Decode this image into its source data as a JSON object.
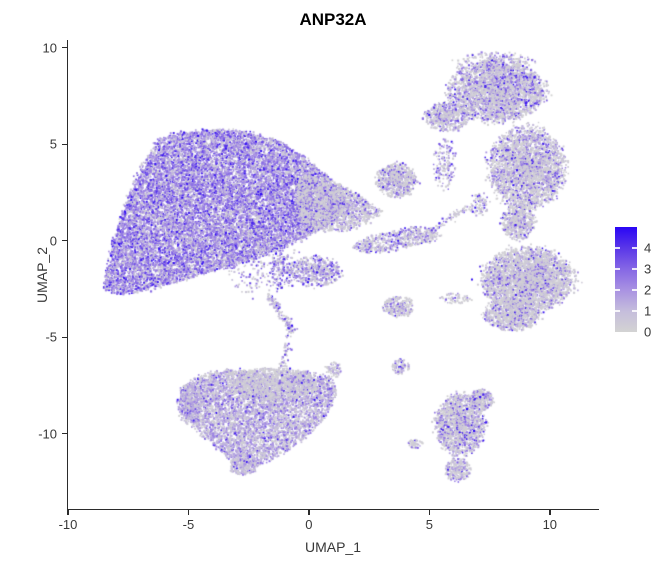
{
  "title": "ANP32A",
  "chart_data": {
    "type": "scatter",
    "subtype": "umap-feature-plot",
    "title": "ANP32A",
    "xlabel": "UMAP_1",
    "ylabel": "UMAP_2",
    "xlim": [
      -10,
      12.0
    ],
    "ylim": [
      -13.9,
      10.4
    ],
    "xticks": [
      -10,
      -5,
      0,
      5,
      10
    ],
    "yticks": [
      -10,
      -5,
      0,
      5,
      10
    ],
    "grid": false,
    "legend_position": "right",
    "colorbar": {
      "ticks": [
        0,
        1,
        2,
        3,
        4
      ],
      "min": 0,
      "max": 5,
      "stops": [
        {
          "t": 0.0,
          "color": "#d3d3d3"
        },
        {
          "t": 0.2,
          "color": "#c5bddc"
        },
        {
          "t": 0.4,
          "color": "#a992e2"
        },
        {
          "t": 0.6,
          "color": "#8567e5"
        },
        {
          "t": 0.8,
          "color": "#5a37e8"
        },
        {
          "t": 1.0,
          "color": "#2a06f5"
        }
      ]
    },
    "clusters": [
      {
        "name": "main-left-triangle",
        "shape": "poly",
        "n": 15000,
        "expr_weights": [
          0.2,
          0.18,
          0.44,
          0.18
        ],
        "pts": [
          [
            -8.55,
            -2.49
          ],
          [
            -8.17,
            -0.21
          ],
          [
            -7.51,
            2.33
          ],
          [
            -6.89,
            4.04
          ],
          [
            -6.27,
            5.18
          ],
          [
            -5.44,
            5.6
          ],
          [
            -3.9,
            5.75
          ],
          [
            -2.37,
            5.6
          ],
          [
            -1.12,
            5.08
          ],
          [
            -0.17,
            4.3
          ],
          [
            0.75,
            3.37
          ],
          [
            1.54,
            2.12
          ],
          [
            1.29,
            1.35
          ],
          [
            0.25,
            0.41
          ],
          [
            -1.0,
            -0.36
          ],
          [
            -2.24,
            -0.93
          ],
          [
            -3.49,
            -1.4
          ],
          [
            -4.81,
            -1.87
          ],
          [
            -6.06,
            -2.33
          ],
          [
            -7.22,
            -2.69
          ],
          [
            -8.05,
            -2.75
          ]
        ]
      },
      {
        "name": "main-right-gray-wing",
        "shape": "poly",
        "n": 1600,
        "expr_weights": [
          0.68,
          0.12,
          0.14,
          0.06
        ],
        "pts": [
          [
            -0.37,
            3.52
          ],
          [
            0.87,
            3.16
          ],
          [
            2.12,
            2.33
          ],
          [
            3.03,
            1.5
          ],
          [
            2.61,
            0.98
          ],
          [
            1.49,
            0.47
          ],
          [
            0.37,
            0.47
          ],
          [
            -0.37,
            1.09
          ],
          [
            -0.58,
            2.12
          ]
        ]
      },
      {
        "name": "below-main-sparse",
        "shape": "ellipse",
        "n": 220,
        "expr_weights": [
          0.35,
          0.2,
          0.3,
          0.15
        ],
        "cx": -1.95,
        "cy": -1.4,
        "rx": 1.58,
        "ry": 1.45
      },
      {
        "name": "top-right-mushroom-head",
        "shape": "ellipse",
        "n": 2800,
        "expr_weights": [
          0.6,
          0.14,
          0.17,
          0.09
        ],
        "cx": 7.8,
        "cy": 7.72,
        "rx": 1.99,
        "ry": 1.55
      },
      {
        "name": "top-right-left-wing",
        "shape": "ellipse",
        "n": 550,
        "expr_weights": [
          0.6,
          0.14,
          0.17,
          0.09
        ],
        "cx": 5.73,
        "cy": 6.42,
        "rx": 0.91,
        "ry": 0.73
      },
      {
        "name": "top-right-halo",
        "shape": "ellipse",
        "n": 260,
        "expr_weights": [
          0.6,
          0.14,
          0.17,
          0.09
        ],
        "cx": 7.72,
        "cy": 9.27,
        "rx": 1.66,
        "ry": 0.52
      },
      {
        "name": "right-body",
        "shape": "ellipse",
        "n": 2800,
        "expr_weights": [
          0.66,
          0.12,
          0.14,
          0.08
        ],
        "cx": 9.05,
        "cy": 3.78,
        "rx": 1.58,
        "ry": 2.12
      },
      {
        "name": "right-neck",
        "shape": "ellipse",
        "n": 520,
        "expr_weights": [
          0.68,
          0.12,
          0.13,
          0.07
        ],
        "cx": 8.71,
        "cy": 0.98,
        "rx": 0.71,
        "ry": 0.93
      },
      {
        "name": "right-boot",
        "shape": "ellipse",
        "n": 3300,
        "expr_weights": [
          0.7,
          0.12,
          0.12,
          0.06
        ],
        "cx": 9.09,
        "cy": -2.02,
        "rx": 1.87,
        "ry": 1.66
      },
      {
        "name": "right-boot-toe",
        "shape": "ellipse",
        "n": 900,
        "expr_weights": [
          0.7,
          0.12,
          0.12,
          0.06
        ],
        "cx": 8.42,
        "cy": -3.83,
        "rx": 1.16,
        "ry": 0.83
      },
      {
        "name": "bottom-left-butterfly",
        "shape": "poly",
        "n": 5200,
        "expr_weights": [
          0.36,
          0.34,
          0.25,
          0.05
        ],
        "pts": [
          [
            -5.27,
            -7.62
          ],
          [
            -4.52,
            -6.99
          ],
          [
            -3.36,
            -6.68
          ],
          [
            -2.12,
            -6.79
          ],
          [
            -1.12,
            -7.1
          ],
          [
            -0.17,
            -6.79
          ],
          [
            0.87,
            -7.05
          ],
          [
            1.2,
            -7.82
          ],
          [
            0.87,
            -8.86
          ],
          [
            0.12,
            -9.9
          ],
          [
            -0.71,
            -10.73
          ],
          [
            -1.7,
            -11.45
          ],
          [
            -2.66,
            -11.76
          ],
          [
            -3.36,
            -11.24
          ],
          [
            -4.02,
            -10.52
          ],
          [
            -4.69,
            -9.79
          ],
          [
            -5.19,
            -8.86
          ]
        ]
      },
      {
        "name": "butterfly-gray-cap",
        "shape": "poly",
        "n": 1000,
        "expr_weights": [
          0.72,
          0.16,
          0.09,
          0.03
        ],
        "pts": [
          [
            -3.49,
            -6.79
          ],
          [
            -1.62,
            -6.58
          ],
          [
            0.04,
            -6.79
          ],
          [
            0.46,
            -7.62
          ],
          [
            -0.58,
            -8.24
          ],
          [
            -2.12,
            -8.34
          ],
          [
            -3.2,
            -7.82
          ]
        ]
      },
      {
        "name": "butterfly-left-hook",
        "shape": "ellipse",
        "n": 420,
        "expr_weights": [
          0.3,
          0.4,
          0.25,
          0.05
        ],
        "cx": -4.94,
        "cy": -8.39,
        "rx": 0.5,
        "ry": 1.04
      },
      {
        "name": "butterfly-bottom-tail",
        "shape": "ellipse",
        "n": 230,
        "expr_weights": [
          0.4,
          0.35,
          0.2,
          0.05
        ],
        "cx": -2.74,
        "cy": -11.66,
        "rx": 0.58,
        "ry": 0.52
      },
      {
        "name": "butterfly-right-arm",
        "shape": "ellipse",
        "n": 70,
        "expr_weights": [
          0.5,
          0.25,
          0.2,
          0.05
        ],
        "cx": 1.0,
        "cy": -6.68,
        "rx": 0.33,
        "ry": 0.41
      },
      {
        "name": "bottom-right-blob",
        "shape": "ellipse",
        "n": 1500,
        "expr_weights": [
          0.62,
          0.14,
          0.16,
          0.08
        ],
        "cx": 6.27,
        "cy": -9.53,
        "rx": 1.04,
        "ry": 1.55
      },
      {
        "name": "bottom-right-arm",
        "shape": "ellipse",
        "n": 260,
        "expr_weights": [
          0.62,
          0.14,
          0.16,
          0.08
        ],
        "cx": 7.18,
        "cy": -8.24,
        "rx": 0.5,
        "ry": 0.52
      },
      {
        "name": "bottom-right-tail",
        "shape": "ellipse",
        "n": 260,
        "expr_weights": [
          0.62,
          0.14,
          0.16,
          0.08
        ],
        "cx": 6.18,
        "cy": -11.87,
        "rx": 0.5,
        "ry": 0.62
      },
      {
        "name": "bottom-right-satellite",
        "shape": "ellipse",
        "n": 60,
        "expr_weights": [
          0.8,
          0.1,
          0.08,
          0.02
        ],
        "cx": 4.4,
        "cy": -10.52,
        "rx": 0.33,
        "ry": 0.21
      },
      {
        "name": "mid-small-upper",
        "shape": "ellipse",
        "n": 700,
        "expr_weights": [
          0.66,
          0.14,
          0.13,
          0.07
        ],
        "cx": 3.65,
        "cy": 3.11,
        "rx": 0.83,
        "ry": 0.88
      },
      {
        "name": "mid-fish",
        "shape": "poly",
        "n": 560,
        "expr_weights": [
          0.55,
          0.15,
          0.2,
          0.1
        ],
        "pts": [
          [
            1.78,
            -0.31
          ],
          [
            2.45,
            0.16
          ],
          [
            3.36,
            0.47
          ],
          [
            4.27,
            0.67
          ],
          [
            5.1,
            0.67
          ],
          [
            5.52,
            0.36
          ],
          [
            5.02,
            -0.05
          ],
          [
            4.11,
            -0.31
          ],
          [
            3.15,
            -0.57
          ],
          [
            2.32,
            -0.62
          ]
        ]
      },
      {
        "name": "mid-fish-tail",
        "shape": "line",
        "n": 60,
        "expr_weights": [
          0.7,
          0.15,
          0.1,
          0.05
        ],
        "a": [
          5.23,
          0.67
        ],
        "b": [
          6.6,
          1.76
        ],
        "w": 0.08
      },
      {
        "name": "mid-small-lower",
        "shape": "ellipse",
        "n": 520,
        "expr_weights": [
          0.42,
          0.18,
          0.25,
          0.15
        ],
        "cx": 0.29,
        "cy": -1.61,
        "rx": 1.08,
        "ry": 0.78
      },
      {
        "name": "mid-small-lower-left",
        "shape": "ellipse",
        "n": 130,
        "expr_weights": [
          0.3,
          0.2,
          0.3,
          0.2
        ],
        "cx": -1.08,
        "cy": -1.5,
        "rx": 0.5,
        "ry": 0.93
      },
      {
        "name": "diag-streak",
        "shape": "line",
        "n": 130,
        "expr_weights": [
          0.35,
          0.25,
          0.25,
          0.15
        ],
        "a": [
          -1.66,
          -2.85
        ],
        "b": [
          -0.66,
          -4.72
        ],
        "w": 0.1
      },
      {
        "name": "down-trail",
        "shape": "line",
        "n": 70,
        "expr_weights": [
          0.5,
          0.2,
          0.2,
          0.1
        ],
        "a": [
          -0.87,
          -4.92
        ],
        "b": [
          -1.16,
          -7.46
        ],
        "w": 0.09
      },
      {
        "name": "mid-speck-blob",
        "shape": "ellipse",
        "n": 260,
        "expr_weights": [
          0.68,
          0.12,
          0.13,
          0.07
        ],
        "cx": 3.73,
        "cy": -3.42,
        "rx": 0.66,
        "ry": 0.52
      },
      {
        "name": "mid-speck-dash",
        "shape": "ellipse",
        "n": 60,
        "expr_weights": [
          0.75,
          0.13,
          0.09,
          0.03
        ],
        "cx": 6.06,
        "cy": -3.01,
        "rx": 0.62,
        "ry": 0.26
      },
      {
        "name": "isolated-clump",
        "shape": "ellipse",
        "n": 90,
        "expr_weights": [
          0.55,
          0.15,
          0.2,
          0.1
        ],
        "cx": 3.82,
        "cy": -6.53,
        "rx": 0.37,
        "ry": 0.41
      },
      {
        "name": "main-tail-sparse",
        "shape": "ellipse",
        "n": 90,
        "expr_weights": [
          0.5,
          0.18,
          0.2,
          0.12
        ],
        "cx": 1.49,
        "cy": 1.87,
        "rx": 0.75,
        "ry": 0.62
      },
      {
        "name": "below-mushroom-sparse",
        "shape": "ellipse",
        "n": 150,
        "expr_weights": [
          0.45,
          0.15,
          0.25,
          0.15
        ],
        "cx": 5.64,
        "cy": 3.94,
        "rx": 0.5,
        "ry": 1.3
      },
      {
        "name": "right-mid-sparse",
        "shape": "ellipse",
        "n": 80,
        "expr_weights": [
          0.6,
          0.15,
          0.15,
          0.1
        ],
        "cx": 7.1,
        "cy": 1.87,
        "rx": 0.41,
        "ry": 0.62
      }
    ]
  }
}
